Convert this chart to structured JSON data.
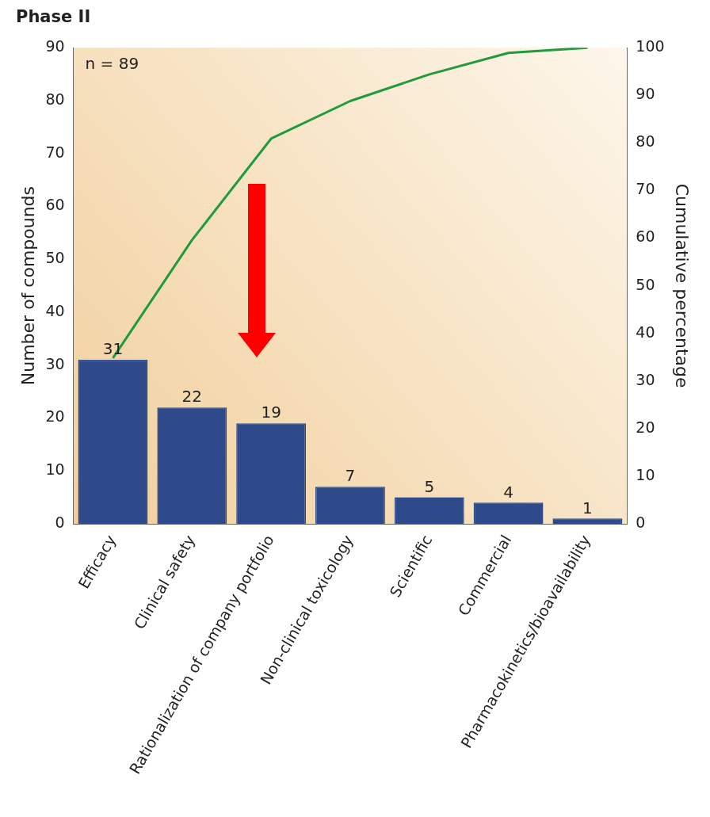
{
  "chart_data": {
    "type": "bar",
    "title": "Phase II",
    "ylabel": "Number of compounds",
    "y2label": "Cumulative percentage",
    "categories": [
      "Efficacy",
      "Clinical safety",
      "Rationalization of company portfolio",
      "Non-clinical toxicology",
      "Scientific",
      "Commercial",
      "Pharmacokinetics/bioavailability"
    ],
    "series": [
      {
        "color": "#2f4a8a",
        "values": [
          31,
          22,
          19,
          7,
          5,
          4,
          1
        ],
        "value_labels": [
          "31",
          "22",
          "19",
          "7",
          "5",
          "4",
          "1"
        ]
      },
      {
        "type": "line",
        "axis": "y2",
        "color": "#1f9a3c",
        "values": [
          34.8,
          59.6,
          80.9,
          88.8,
          94.4,
          98.9,
          100
        ]
      }
    ],
    "ylim": [
      0,
      90
    ],
    "yticks": [
      0,
      10,
      20,
      30,
      40,
      50,
      60,
      70,
      80,
      90
    ],
    "y2lim": [
      0,
      100
    ],
    "y2ticks": [
      0,
      10,
      20,
      30,
      40,
      50,
      60,
      70,
      80,
      90,
      100
    ],
    "grid": false,
    "legend": false,
    "marker": "none",
    "line_style": "solid",
    "annotations": [
      "n = 89"
    ]
  }
}
